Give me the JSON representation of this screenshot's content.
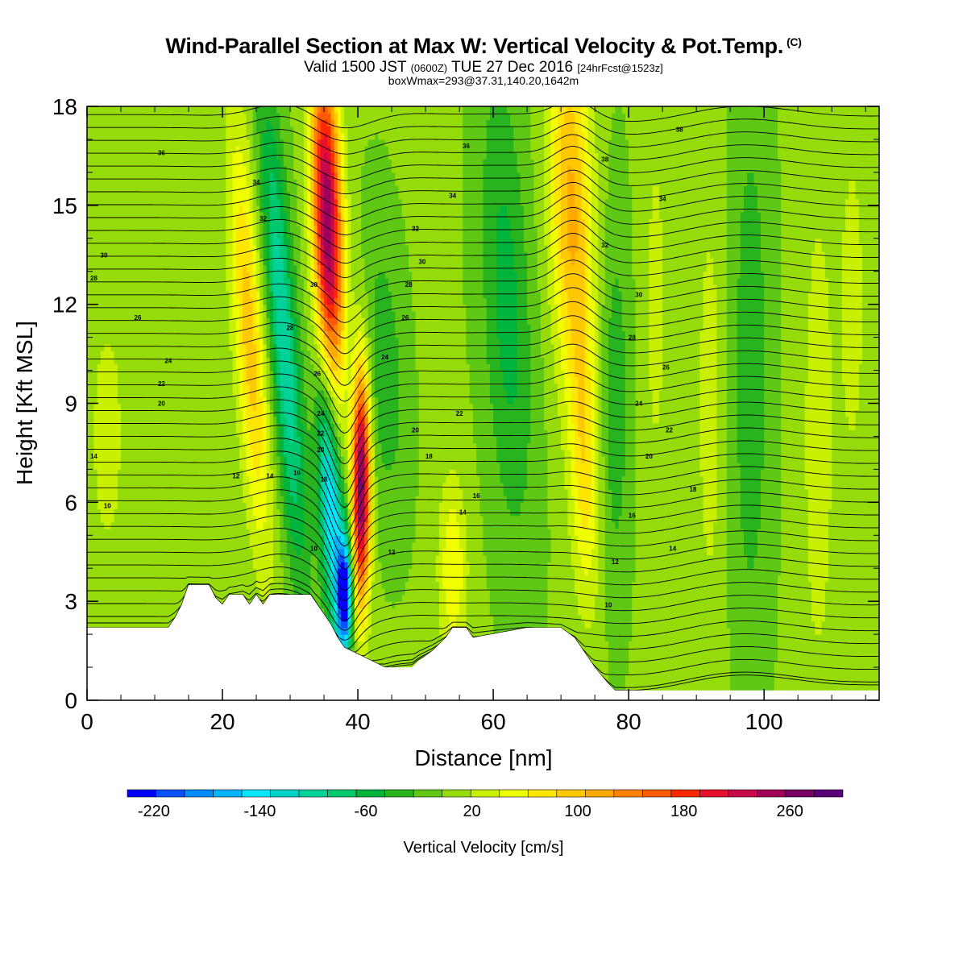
{
  "titles": {
    "main": "Wind-Parallel Section at Max W: Vertical Velocity & Pot.Temp.",
    "copyright": "(C)",
    "valid_prefix": "Valid 1500 JST",
    "utc": "(0600Z)",
    "valid_date": "TUE 27 Dec 2016",
    "forecast": "[24hrFcst@1523z]",
    "boxw": "boxWmax=293@37.31,140.20,1642m"
  },
  "chart_data": {
    "type": "heatmap",
    "xlabel": "Distance [nm]",
    "ylabel": "Height [Kft MSL]",
    "xlim": [
      0,
      117
    ],
    "ylim": [
      0,
      18
    ],
    "xticks": [
      0,
      20,
      40,
      60,
      80,
      100
    ],
    "yticks": [
      0,
      3,
      6,
      9,
      12,
      15,
      18
    ],
    "colorbar": {
      "label": "Vertical Velocity [cm/s]",
      "ticks": [
        -220,
        -140,
        -60,
        20,
        100,
        180,
        260
      ],
      "range": [
        -240,
        300
      ],
      "colors": [
        "#0000ff",
        "#0a50ff",
        "#008cff",
        "#00b4ff",
        "#00e6ff",
        "#00d2c8",
        "#00d29a",
        "#00c86e",
        "#00b43c",
        "#28b41e",
        "#5fc814",
        "#96dc0a",
        "#c8f000",
        "#f0ff00",
        "#ffe600",
        "#ffc800",
        "#ffaa00",
        "#ff8200",
        "#ff5a00",
        "#ff2800",
        "#e60f2d",
        "#c80a4b",
        "#a0005a",
        "#780064",
        "#5a0078"
      ]
    },
    "terrain_kft": [
      [
        0,
        2.2
      ],
      [
        12,
        2.2
      ],
      [
        13,
        2.5
      ],
      [
        14,
        2.9
      ],
      [
        15,
        3.5
      ],
      [
        18,
        3.5
      ],
      [
        19,
        3.1
      ],
      [
        20,
        2.9
      ],
      [
        21,
        3.2
      ],
      [
        23,
        3.2
      ],
      [
        24,
        2.9
      ],
      [
        25,
        3.2
      ],
      [
        26,
        2.9
      ],
      [
        27,
        3.2
      ],
      [
        33,
        3.2
      ],
      [
        34,
        2.9
      ],
      [
        35,
        2.6
      ],
      [
        36,
        2.3
      ],
      [
        37,
        1.9
      ],
      [
        38,
        1.6
      ],
      [
        39,
        1.5
      ],
      [
        41,
        1.3
      ],
      [
        44,
        1.0
      ],
      [
        48,
        1.0
      ],
      [
        49,
        1.2
      ],
      [
        51,
        1.5
      ],
      [
        53,
        1.9
      ],
      [
        54,
        2.2
      ],
      [
        56,
        2.2
      ],
      [
        57,
        1.9
      ],
      [
        65,
        2.2
      ],
      [
        70,
        2.2
      ],
      [
        72,
        1.9
      ],
      [
        73,
        1.6
      ],
      [
        75,
        1.0
      ],
      [
        77,
        0.5
      ],
      [
        78,
        0.3
      ],
      [
        117,
        0.3
      ]
    ],
    "w_features": [
      {
        "x": 3,
        "z": 8,
        "sx": 2,
        "sz": 3,
        "tilt": 0,
        "w": 30
      },
      {
        "x": 24,
        "z": 11,
        "sx": 1.6,
        "sz": 4.5,
        "tilt": -0.3,
        "w": 95
      },
      {
        "x": 29,
        "z": 11,
        "sx": 1.5,
        "sz": 5,
        "tilt": -0.35,
        "w": -110
      },
      {
        "x": 35.5,
        "z": 14.5,
        "sx": 1.5,
        "sz": 3.5,
        "tilt": -0.15,
        "w": 260
      },
      {
        "x": 40.5,
        "z": 6.5,
        "sx": 0.9,
        "sz": 2.5,
        "tilt": 0,
        "w": 270
      },
      {
        "x": 36,
        "z": 6,
        "sx": 1.2,
        "sz": 2.8,
        "tilt": -0.25,
        "w": -160
      },
      {
        "x": 38,
        "z": 3.2,
        "sx": 0.8,
        "sz": 1.2,
        "tilt": 0,
        "w": -230
      },
      {
        "x": 44,
        "z": 10,
        "sx": 2,
        "sz": 3,
        "tilt": -0.2,
        "w": -40
      },
      {
        "x": 54,
        "z": 4,
        "sx": 1.5,
        "sz": 2,
        "tilt": 0,
        "w": 60
      },
      {
        "x": 62,
        "z": 12,
        "sx": 2.5,
        "sz": 5,
        "tilt": -0.2,
        "w": -55
      },
      {
        "x": 71.5,
        "z": 15,
        "sx": 2.2,
        "sz": 4,
        "tilt": -0.12,
        "w": 110
      },
      {
        "x": 73.5,
        "z": 7,
        "sx": 1.5,
        "sz": 3,
        "tilt": -0.1,
        "w": 70
      },
      {
        "x": 78,
        "z": 9,
        "sx": 1.5,
        "sz": 4,
        "tilt": 0,
        "w": -40
      },
      {
        "x": 84,
        "z": 12,
        "sx": 1.5,
        "sz": 5,
        "tilt": 0,
        "w": 25
      },
      {
        "x": 92,
        "z": 9,
        "sx": 1.5,
        "sz": 5,
        "tilt": 0,
        "w": 30
      },
      {
        "x": 98,
        "z": 10,
        "sx": 2,
        "sz": 6,
        "tilt": 0,
        "w": -40
      },
      {
        "x": 108,
        "z": 8,
        "sx": 1.5,
        "sz": 5,
        "tilt": 0,
        "w": 40
      },
      {
        "x": 113,
        "z": 12,
        "sx": 1.5,
        "sz": 4,
        "tilt": 0,
        "w": 30
      }
    ],
    "w_background": 0,
    "theta_labels": [
      {
        "x": 11,
        "z": 16.6,
        "text": "36"
      },
      {
        "x": 25,
        "z": 15.7,
        "text": "34"
      },
      {
        "x": 26,
        "z": 14.6,
        "text": "32"
      },
      {
        "x": 2.5,
        "z": 13.5,
        "text": "30"
      },
      {
        "x": 1,
        "z": 12.8,
        "text": "28"
      },
      {
        "x": 7.5,
        "z": 11.6,
        "text": "26"
      },
      {
        "x": 12,
        "z": 10.3,
        "text": "24"
      },
      {
        "x": 11,
        "z": 9.6,
        "text": "22"
      },
      {
        "x": 11,
        "z": 9.0,
        "text": "20"
      },
      {
        "x": 1,
        "z": 7.4,
        "text": "14"
      },
      {
        "x": 3,
        "z": 5.9,
        "text": "10"
      },
      {
        "x": 22,
        "z": 6.8,
        "text": "12"
      },
      {
        "x": 27,
        "z": 6.8,
        "text": "14"
      },
      {
        "x": 31,
        "z": 6.9,
        "text": "16"
      },
      {
        "x": 33.5,
        "z": 12.6,
        "text": "30"
      },
      {
        "x": 30,
        "z": 11.3,
        "text": "28"
      },
      {
        "x": 34,
        "z": 9.9,
        "text": "26"
      },
      {
        "x": 34.5,
        "z": 8.7,
        "text": "24"
      },
      {
        "x": 34.5,
        "z": 8.1,
        "text": "22"
      },
      {
        "x": 34.5,
        "z": 7.6,
        "text": "20"
      },
      {
        "x": 35,
        "z": 6.7,
        "text": "18"
      },
      {
        "x": 33.5,
        "z": 4.6,
        "text": "10"
      },
      {
        "x": 56,
        "z": 16.8,
        "text": "36"
      },
      {
        "x": 54,
        "z": 15.3,
        "text": "34"
      },
      {
        "x": 48.5,
        "z": 14.3,
        "text": "32"
      },
      {
        "x": 49.5,
        "z": 13.3,
        "text": "30"
      },
      {
        "x": 47.5,
        "z": 12.6,
        "text": "28"
      },
      {
        "x": 47,
        "z": 11.6,
        "text": "26"
      },
      {
        "x": 44,
        "z": 10.4,
        "text": "24"
      },
      {
        "x": 55,
        "z": 8.7,
        "text": "22"
      },
      {
        "x": 48.5,
        "z": 8.2,
        "text": "20"
      },
      {
        "x": 50.5,
        "z": 7.4,
        "text": "18"
      },
      {
        "x": 57.5,
        "z": 6.2,
        "text": "16"
      },
      {
        "x": 55.5,
        "z": 5.7,
        "text": "14"
      },
      {
        "x": 45,
        "z": 4.5,
        "text": "12"
      },
      {
        "x": 76.5,
        "z": 16.4,
        "text": "38"
      },
      {
        "x": 87.5,
        "z": 17.3,
        "text": "38"
      },
      {
        "x": 85,
        "z": 15.2,
        "text": "34"
      },
      {
        "x": 76.5,
        "z": 13.8,
        "text": "32"
      },
      {
        "x": 81.5,
        "z": 12.3,
        "text": "30"
      },
      {
        "x": 80.5,
        "z": 11.0,
        "text": "28"
      },
      {
        "x": 85.5,
        "z": 10.1,
        "text": "26"
      },
      {
        "x": 81.5,
        "z": 9.0,
        "text": "24"
      },
      {
        "x": 86,
        "z": 8.2,
        "text": "22"
      },
      {
        "x": 83,
        "z": 7.4,
        "text": "20"
      },
      {
        "x": 89.5,
        "z": 6.4,
        "text": "18"
      },
      {
        "x": 80.5,
        "z": 5.6,
        "text": "16"
      },
      {
        "x": 86.5,
        "z": 4.6,
        "text": "14"
      },
      {
        "x": 78,
        "z": 4.2,
        "text": "12"
      },
      {
        "x": 77,
        "z": 2.9,
        "text": "10"
      }
    ]
  }
}
